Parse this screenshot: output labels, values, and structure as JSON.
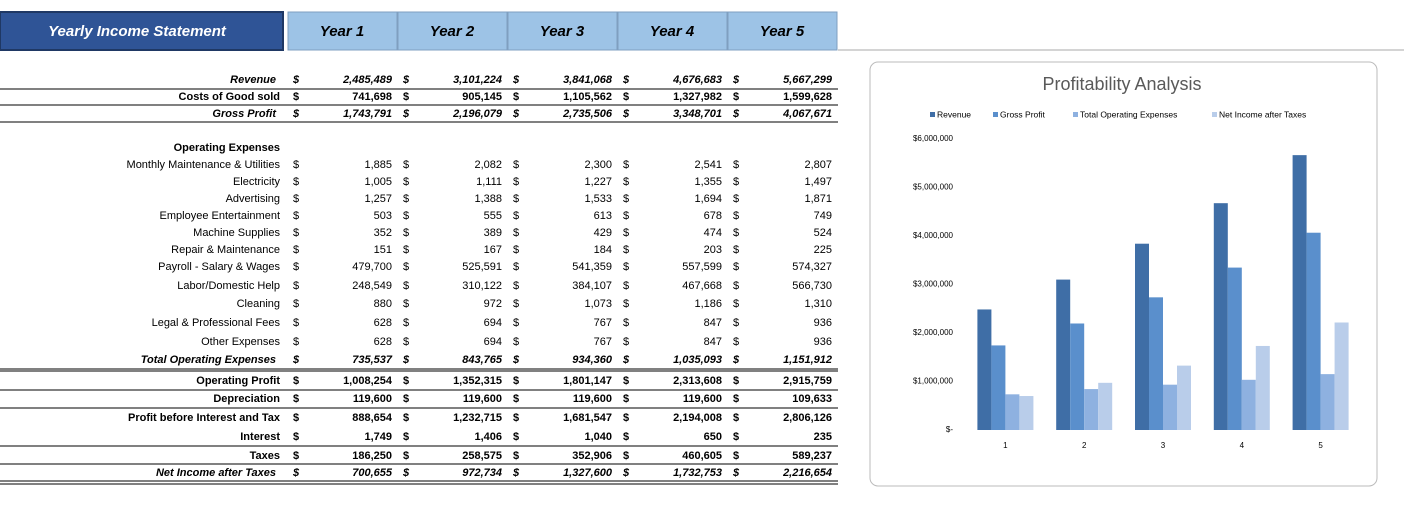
{
  "header": {
    "title": "Yearly Income Statement",
    "columns": [
      "Year 1",
      "Year 2",
      "Year 3",
      "Year 4",
      "Year 5"
    ]
  },
  "currency_symbol": "$",
  "table": {
    "rows": [
      {
        "label": "Revenue",
        "values": [
          "2,485,489",
          "3,101,224",
          "3,841,068",
          "4,676,683",
          "5,667,299"
        ]
      },
      {
        "label": "Costs of Good sold",
        "values": [
          "741,698",
          "905,145",
          "1,105,562",
          "1,327,982",
          "1,599,628"
        ]
      },
      {
        "label": "Gross Profit",
        "values": [
          "1,743,791",
          "2,196,079",
          "2,735,506",
          "3,348,701",
          "4,067,671"
        ]
      },
      {
        "label": "Operating Expenses"
      },
      {
        "label": "Monthly Maintenance & Utilities",
        "values": [
          "1,885",
          "2,082",
          "2,300",
          "2,541",
          "2,807"
        ]
      },
      {
        "label": "Electricity",
        "values": [
          "1,005",
          "1,111",
          "1,227",
          "1,355",
          "1,497"
        ]
      },
      {
        "label": "Advertising",
        "values": [
          "1,257",
          "1,388",
          "1,533",
          "1,694",
          "1,871"
        ]
      },
      {
        "label": "Employee Entertainment",
        "values": [
          "503",
          "555",
          "613",
          "678",
          "749"
        ]
      },
      {
        "label": "Machine Supplies",
        "values": [
          "352",
          "389",
          "429",
          "474",
          "524"
        ]
      },
      {
        "label": "Repair & Maintenance",
        "values": [
          "151",
          "167",
          "184",
          "203",
          "225"
        ]
      },
      {
        "label": "Payroll - Salary & Wages",
        "values": [
          "479,700",
          "525,591",
          "541,359",
          "557,599",
          "574,327"
        ]
      },
      {
        "label": "Labor/Domestic Help",
        "values": [
          "248,549",
          "310,122",
          "384,107",
          "467,668",
          "566,730"
        ]
      },
      {
        "label": "Cleaning",
        "values": [
          "880",
          "972",
          "1,073",
          "1,186",
          "1,310"
        ]
      },
      {
        "label": "Legal & Professional Fees",
        "values": [
          "628",
          "694",
          "767",
          "847",
          "936"
        ]
      },
      {
        "label": "Other Expenses",
        "values": [
          "628",
          "694",
          "767",
          "847",
          "936"
        ]
      },
      {
        "label": "Total Operating Expenses",
        "values": [
          "735,537",
          "843,765",
          "934,360",
          "1,035,093",
          "1,151,912"
        ]
      },
      {
        "label": "Operating Profit",
        "values": [
          "1,008,254",
          "1,352,315",
          "1,801,147",
          "2,313,608",
          "2,915,759"
        ]
      },
      {
        "label": "Depreciation",
        "values": [
          "119,600",
          "119,600",
          "119,600",
          "119,600",
          "109,633"
        ]
      },
      {
        "label": "Profit before Interest and Tax",
        "values": [
          "888,654",
          "1,232,715",
          "1,681,547",
          "2,194,008",
          "2,806,126"
        ]
      },
      {
        "label": "Interest",
        "values": [
          "1,749",
          "1,406",
          "1,040",
          "650",
          "235"
        ]
      },
      {
        "label": "Taxes",
        "values": [
          "186,250",
          "258,575",
          "352,906",
          "460,605",
          "589,237"
        ]
      },
      {
        "label": "Net Income after Taxes",
        "values": [
          "700,655",
          "972,734",
          "1,327,600",
          "1,732,753",
          "2,216,654"
        ]
      }
    ]
  },
  "chart_data": {
    "type": "bar",
    "title": "Profitability Analysis",
    "categories": [
      "1",
      "2",
      "3",
      "4",
      "5"
    ],
    "series": [
      {
        "name": "Revenue",
        "color": "#3f6ea6",
        "values": [
          2485489,
          3101224,
          3841068,
          4676683,
          5667299
        ]
      },
      {
        "name": "Gross Profit",
        "color": "#5a8fcc",
        "values": [
          1743791,
          2196079,
          2735506,
          3348701,
          4067671
        ]
      },
      {
        "name": "Total Operating Expenses",
        "color": "#8eb1e0",
        "values": [
          735537,
          843765,
          934360,
          1035093,
          1151912
        ]
      },
      {
        "name": "Net Income after Taxes",
        "color": "#b9cdea",
        "values": [
          700655,
          972734,
          1327600,
          1732753,
          2216654
        ]
      }
    ],
    "ylim": [
      0,
      6000000
    ],
    "yticks": [
      {
        "value": 0,
        "label": "$-"
      },
      {
        "value": 1000000,
        "label": "$1,000,000"
      },
      {
        "value": 2000000,
        "label": "$2,000,000"
      },
      {
        "value": 3000000,
        "label": "$3,000,000"
      },
      {
        "value": 4000000,
        "label": "$4,000,000"
      },
      {
        "value": 5000000,
        "label": "$5,000,000"
      },
      {
        "value": 6000000,
        "label": "$6,000,000"
      }
    ],
    "legend": "top",
    "grid": false
  }
}
